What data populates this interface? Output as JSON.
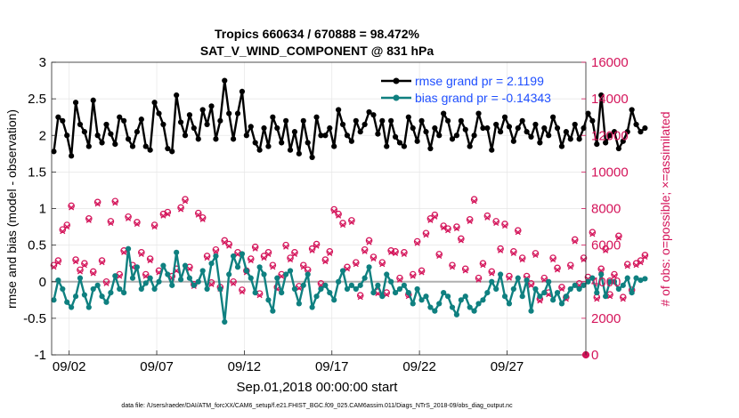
{
  "chart_data": {
    "type": "line",
    "title": "Tropics 660634 / 670888 = 98.472%",
    "subtitle": "SAT_V_WIND_COMPONENT @ 831 hPa",
    "xlabel": "Sep.01,2018 00:00:00 start",
    "ylabel_left": "rmse and bias (model - observation)",
    "ylabel_right": "# of obs: o=possible; ×=assimilated",
    "footer": "data file: /Users/raeder/DAI/ATM_forcXX/CAM6_setup/f.e21.FHIST_BGC.f09_025.CAM6assim.011/Diags_NTrS_2018-09/obs_diag_output.nc",
    "x_range": [
      0,
      30.5
    ],
    "ylim_left": [
      -1,
      3
    ],
    "ylim_right": [
      0,
      16000
    ],
    "x_ticks": [
      {
        "x": 1,
        "label": "09/02"
      },
      {
        "x": 6,
        "label": "09/07"
      },
      {
        "x": 11,
        "label": "09/12"
      },
      {
        "x": 16,
        "label": "09/17"
      },
      {
        "x": 21,
        "label": "09/22"
      },
      {
        "x": 26,
        "label": "09/27"
      }
    ],
    "y_ticks_left": [
      "-1",
      "-0.5",
      "0",
      "0.5",
      "1",
      "1.5",
      "2",
      "2.5",
      "3"
    ],
    "y_ticks_right": [
      "0",
      "2000",
      "4000",
      "6000",
      "8000",
      "10000",
      "12000",
      "14000",
      "16000"
    ],
    "legend": {
      "position": "top-right",
      "entries": [
        "rmse grand pr = 2.1199",
        "bias grand pr = -0.14343"
      ]
    },
    "colors": {
      "rmse": "#000000",
      "bias": "#0f8080",
      "obs": "#d4145a",
      "zero_line": "#b0b0b0",
      "grid": "#e6e6e6",
      "legend_text": "#1f4fff"
    },
    "step_days": 0.25,
    "series": [
      {
        "name": "rmse",
        "axis": "left",
        "values": [
          1.78,
          2.25,
          2.2,
          2.0,
          1.72,
          2.45,
          2.15,
          2.05,
          1.85,
          2.48,
          2.0,
          1.9,
          2.15,
          2.02,
          1.88,
          2.25,
          2.2,
          1.95,
          1.85,
          2.05,
          2.22,
          1.85,
          1.8,
          2.45,
          2.3,
          2.15,
          1.82,
          1.78,
          2.55,
          2.18,
          2.0,
          2.28,
          2.1,
          1.95,
          2.35,
          2.15,
          2.4,
          1.95,
          2.2,
          2.75,
          2.3,
          1.95,
          2.3,
          2.6,
          2.0,
          2.12,
          1.9,
          1.8,
          2.1,
          1.85,
          2.25,
          2.1,
          1.9,
          2.2,
          1.8,
          2.05,
          1.75,
          2.2,
          1.9,
          1.7,
          2.25,
          2.0,
          2.0,
          2.1,
          1.85,
          2.35,
          2.15,
          2.0,
          1.92,
          2.2,
          2.05,
          2.15,
          2.32,
          2.28,
          2.02,
          2.2,
          1.85,
          2.2,
          1.98,
          1.9,
          1.85,
          2.25,
          2.1,
          1.92,
          2.2,
          2.05,
          1.82,
          2.1,
          2.0,
          2.3,
          2.2,
          1.95,
          2.0,
          2.2,
          2.08,
          1.85,
          2.0,
          2.3,
          2.1,
          2.1,
          1.8,
          2.15,
          2.05,
          2.25,
          2.12,
          1.92,
          2.1,
          2.2,
          2.05,
          1.98,
          2.15,
          1.9,
          2.1,
          2.0,
          2.25,
          2.1,
          1.85,
          2.05,
          1.95,
          2.15,
          1.95,
          2.1,
          2.3,
          2.2,
          1.88,
          2.55,
          1.9,
          2.0,
          2.05,
          1.82,
          1.92,
          2.05,
          2.35,
          2.15,
          2.05,
          2.1
        ]
      },
      {
        "name": "bias",
        "axis": "left",
        "values": [
          -0.25,
          0.02,
          -0.1,
          -0.28,
          -0.35,
          -0.2,
          0.05,
          -0.18,
          -0.35,
          -0.1,
          -0.05,
          -0.2,
          -0.28,
          -0.15,
          0.08,
          -0.1,
          -0.15,
          0.45,
          0.05,
          0.2,
          -0.1,
          -0.02,
          0.05,
          -0.1,
          0.0,
          0.22,
          0.1,
          -0.05,
          0.4,
          0.03,
          0.22,
          0.05,
          -0.05,
          0.0,
          0.15,
          -0.1,
          0.25,
          0.35,
          -0.1,
          -0.55,
          0.1,
          0.35,
          0.2,
          0.38,
          0.15,
          0.05,
          -0.15,
          0.2,
          0.1,
          -0.25,
          -0.4,
          0.05,
          -0.15,
          0.1,
          0.15,
          -0.1,
          -0.3,
          -0.05,
          0.1,
          -0.35,
          -0.2,
          -0.1,
          -0.05,
          -0.15,
          -0.25,
          0.0,
          0.15,
          -0.1,
          -0.05,
          -0.1,
          -0.05,
          0.05,
          0.2,
          -0.15,
          -0.05,
          -0.2,
          0.1,
          0.0,
          -0.15,
          -0.1,
          -0.05,
          -0.15,
          -0.3,
          -0.1,
          -0.25,
          -0.2,
          -0.35,
          -0.4,
          -0.3,
          -0.15,
          -0.2,
          -0.35,
          -0.45,
          -0.25,
          -0.2,
          -0.35,
          -0.4,
          -0.3,
          -0.25,
          -0.15,
          0.0,
          -0.1,
          0.1,
          -0.2,
          -0.3,
          -0.1,
          0.05,
          -0.2,
          0.02,
          -0.4,
          -0.1,
          -0.2,
          -0.15,
          0.0,
          -0.25,
          -0.15,
          -0.3,
          -0.2,
          -0.1,
          -0.05,
          -0.1,
          -0.05,
          0.0,
          0.05,
          -0.15,
          0.1,
          -0.2,
          0.0,
          0.0,
          -0.1,
          -0.05,
          0.05,
          -0.15,
          0.05,
          0.02,
          0.04
        ]
      },
      {
        "name": "obs_possible",
        "axis": "right",
        "values": [
          4900,
          5150,
          6850,
          7100,
          8150,
          5200,
          4650,
          5000,
          7450,
          4550,
          8350,
          5150,
          4000,
          7300,
          8400,
          4400,
          5700,
          7550,
          4900,
          7250,
          5600,
          4400,
          5250,
          7100,
          4600,
          7700,
          7800,
          4300,
          4700,
          8050,
          8500,
          4800,
          3850,
          7750,
          7500,
          5400,
          3950,
          5750,
          3700,
          6250,
          6050,
          4000,
          5600,
          3550,
          4600,
          5250,
          5900,
          3350,
          5400,
          5600,
          4900,
          3700,
          4400,
          6000,
          5300,
          5600,
          3750,
          4900,
          4650,
          5800,
          6050,
          3900,
          5200,
          5650,
          7950,
          7700,
          7200,
          4800,
          7350,
          5050,
          3250,
          5750,
          6250,
          5350,
          3450,
          5050,
          3400,
          5700,
          5650,
          4200,
          5600,
          3300,
          4400,
          6200,
          4600,
          6650,
          7450,
          7650,
          5500,
          7050,
          6900,
          4900,
          7000,
          6350,
          4700,
          7400,
          8500,
          4200,
          5000,
          7600,
          4550,
          7300,
          5800,
          7150,
          4300,
          5650,
          6800,
          5300,
          4300,
          3900,
          5550,
          3050,
          4200,
          3400,
          5300,
          4750,
          3700,
          3150,
          4900,
          6300,
          3900,
          5300,
          4250,
          6700,
          3150,
          4700,
          5800,
          3300,
          4400,
          6500,
          3150,
          4950,
          3550,
          5000,
          5150,
          5450
        ]
      },
      {
        "name": "obs_assimilated",
        "axis": "right",
        "values": [
          4800,
          5050,
          6750,
          7000,
          8050,
          5100,
          4550,
          4900,
          7350,
          4450,
          8250,
          5050,
          3900,
          7200,
          8300,
          4300,
          5600,
          7450,
          4800,
          7150,
          5500,
          4300,
          5150,
          7000,
          4500,
          7600,
          7700,
          4200,
          4600,
          7950,
          8400,
          4700,
          3750,
          7650,
          7400,
          5300,
          3850,
          5650,
          3600,
          6150,
          5950,
          3900,
          5500,
          3450,
          4500,
          5150,
          5800,
          3250,
          5300,
          5500,
          4800,
          3600,
          4300,
          5900,
          5200,
          5500,
          3650,
          4800,
          4550,
          5700,
          5950,
          3800,
          5100,
          5550,
          7850,
          7600,
          7100,
          4700,
          7250,
          4950,
          3150,
          5650,
          6150,
          5250,
          3350,
          4950,
          3300,
          5600,
          5550,
          4100,
          5500,
          3200,
          4300,
          6100,
          4500,
          6550,
          7350,
          7550,
          5400,
          6950,
          6800,
          4800,
          6900,
          6250,
          4600,
          7300,
          8400,
          4100,
          4900,
          7500,
          4450,
          7200,
          5700,
          7050,
          4200,
          5550,
          6700,
          5200,
          4200,
          3800,
          5450,
          2950,
          4100,
          3300,
          5200,
          4650,
          3600,
          3050,
          4800,
          6200,
          3800,
          5200,
          4150,
          6600,
          3050,
          4600,
          5700,
          3200,
          4300,
          6400,
          3050,
          4850,
          3450,
          4900,
          5050,
          5350
        ]
      }
    ],
    "obs_extra_point": {
      "x": 30.5,
      "value": 0
    }
  }
}
